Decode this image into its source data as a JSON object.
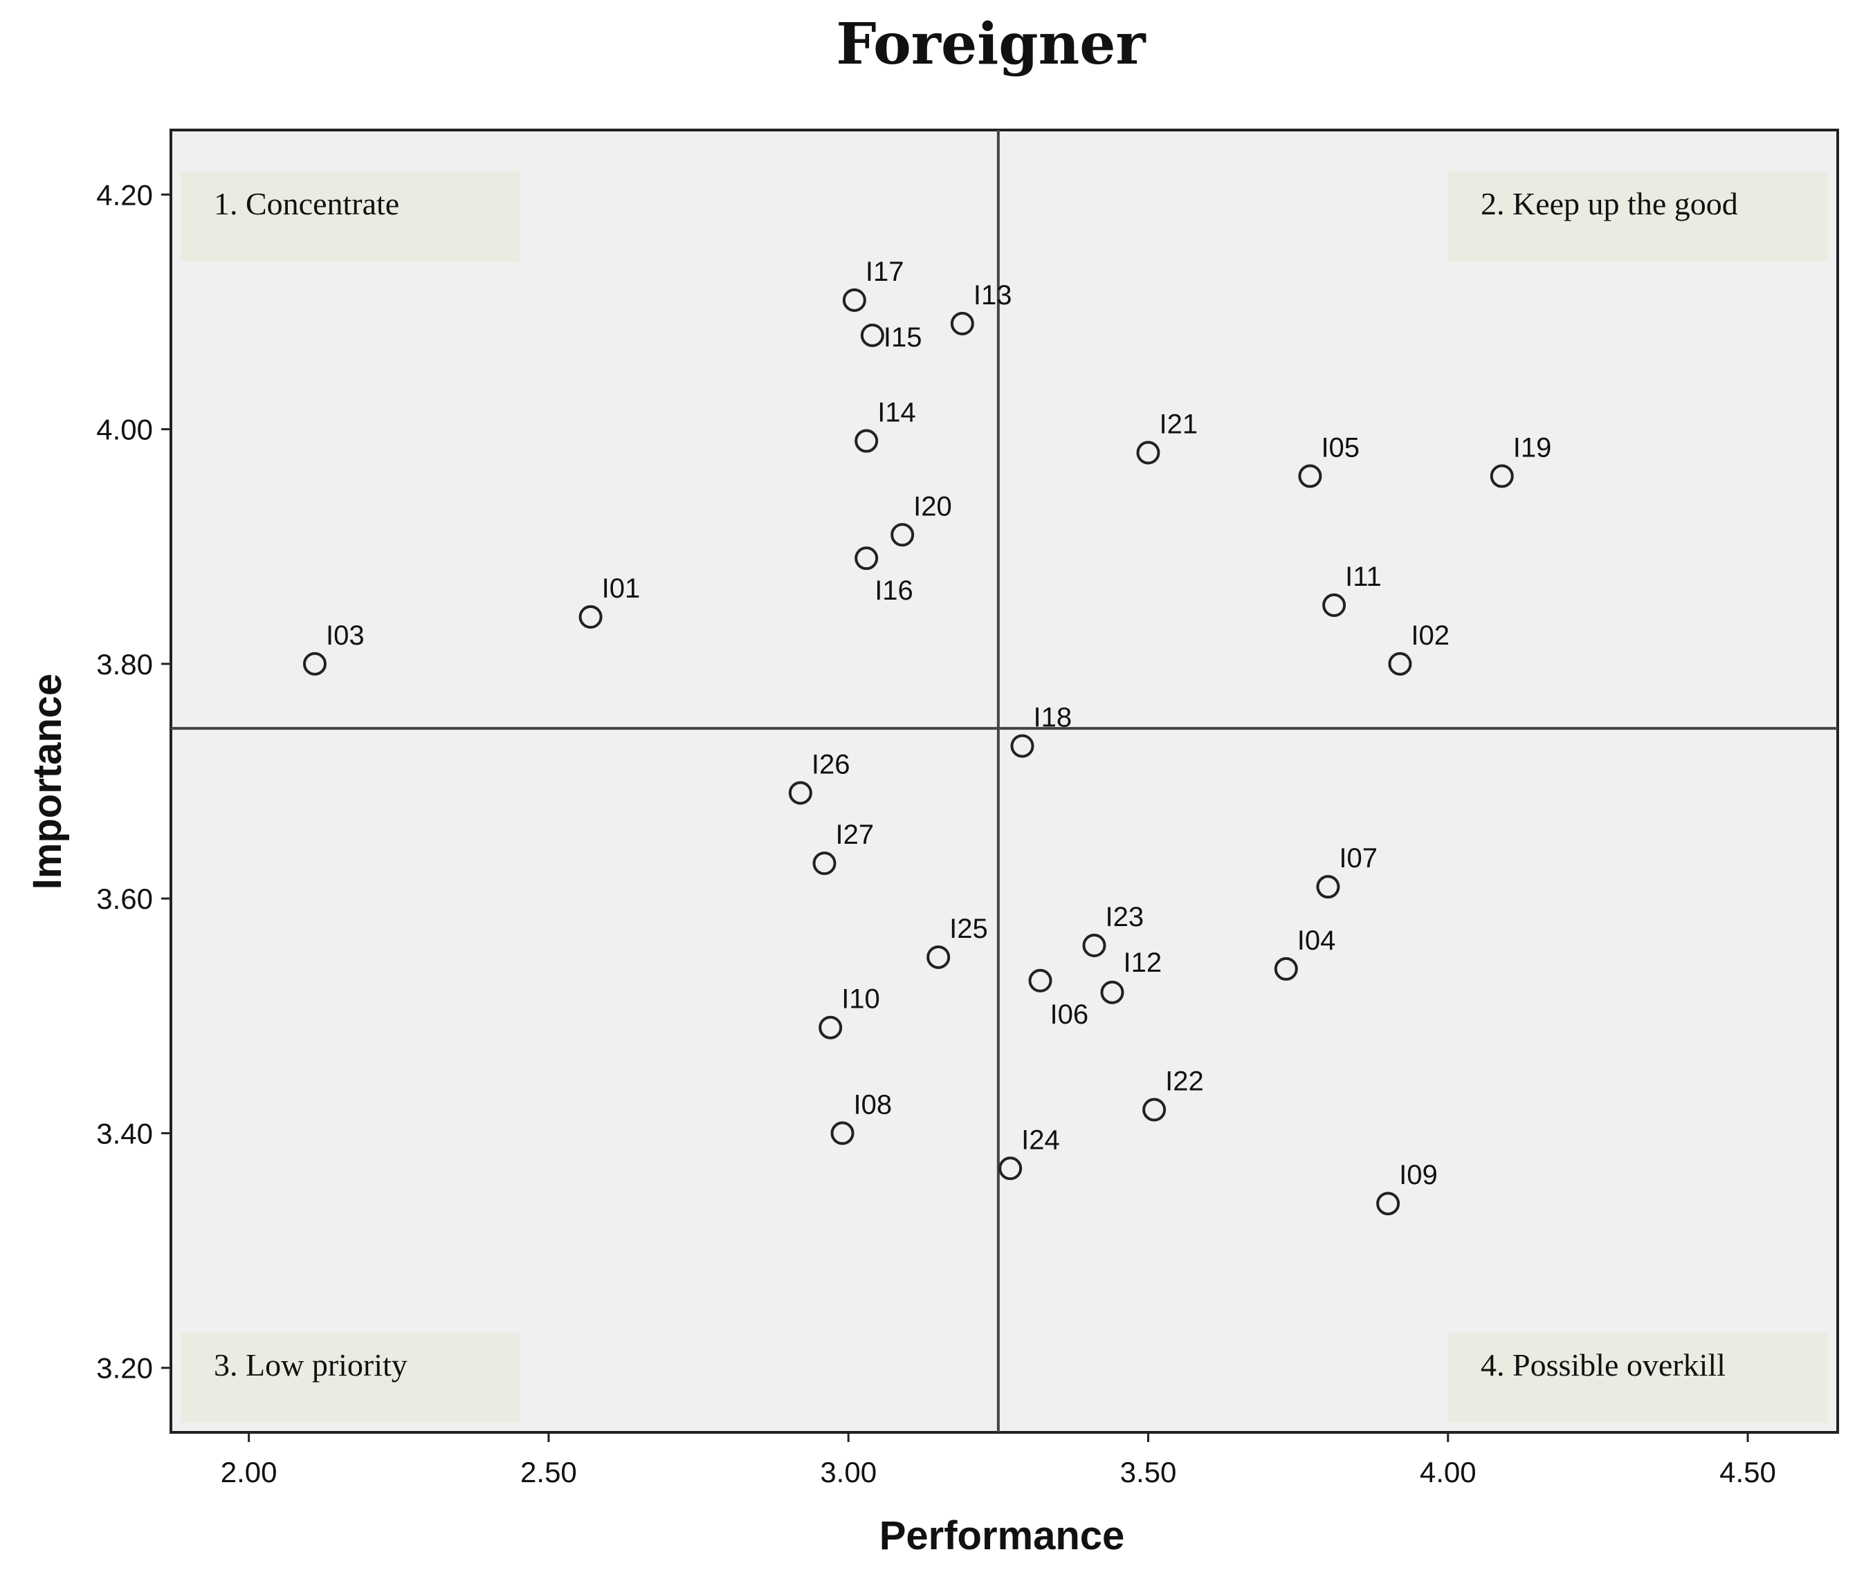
{
  "chart_data": {
    "type": "scatter",
    "title": "Foreigner",
    "xlabel": "Performance",
    "ylabel": "Importance",
    "xlim": [
      1.87,
      4.65
    ],
    "ylim": [
      3.145,
      4.255
    ],
    "xticks": [
      2.0,
      2.5,
      3.0,
      3.5,
      4.0,
      4.5
    ],
    "xtick_labels": [
      "2.00",
      "2.50",
      "3.00",
      "3.50",
      "4.00",
      "4.50"
    ],
    "yticks": [
      3.2,
      3.4,
      3.6,
      3.8,
      4.0,
      4.2
    ],
    "ytick_labels": [
      "3.20",
      "3.40",
      "3.60",
      "3.80",
      "4.00",
      "4.20"
    ],
    "grid": false,
    "reference_lines": {
      "x": 3.25,
      "y": 3.745
    },
    "quadrants": [
      {
        "label": "1. Concentrate",
        "position": "top-left"
      },
      {
        "label": "2. Keep up the good",
        "position": "top-right"
      },
      {
        "label": "3. Low priority",
        "position": "bottom-left"
      },
      {
        "label": "4. Possible overkill",
        "position": "bottom-right"
      }
    ],
    "points": [
      {
        "label": "I01",
        "x": 2.57,
        "y": 3.84
      },
      {
        "label": "I02",
        "x": 3.92,
        "y": 3.8
      },
      {
        "label": "I03",
        "x": 2.11,
        "y": 3.8
      },
      {
        "label": "I04",
        "x": 3.73,
        "y": 3.54
      },
      {
        "label": "I05",
        "x": 3.77,
        "y": 3.96
      },
      {
        "label": "I06",
        "x": 3.32,
        "y": 3.53
      },
      {
        "label": "I07",
        "x": 3.8,
        "y": 3.61
      },
      {
        "label": "I08",
        "x": 2.99,
        "y": 3.4
      },
      {
        "label": "I09",
        "x": 3.9,
        "y": 3.34
      },
      {
        "label": "I10",
        "x": 2.97,
        "y": 3.49
      },
      {
        "label": "I11",
        "x": 3.81,
        "y": 3.85
      },
      {
        "label": "I12",
        "x": 3.44,
        "y": 3.52
      },
      {
        "label": "I13",
        "x": 3.19,
        "y": 4.09
      },
      {
        "label": "I14",
        "x": 3.03,
        "y": 3.99
      },
      {
        "label": "I15",
        "x": 3.04,
        "y": 4.08
      },
      {
        "label": "I16",
        "x": 3.03,
        "y": 3.89
      },
      {
        "label": "I17",
        "x": 3.01,
        "y": 4.11
      },
      {
        "label": "I18",
        "x": 3.29,
        "y": 3.73
      },
      {
        "label": "I19",
        "x": 4.09,
        "y": 3.96
      },
      {
        "label": "I20",
        "x": 3.09,
        "y": 3.91
      },
      {
        "label": "I21",
        "x": 3.5,
        "y": 3.98
      },
      {
        "label": "I22",
        "x": 3.51,
        "y": 3.42
      },
      {
        "label": "I23",
        "x": 3.41,
        "y": 3.56
      },
      {
        "label": "I24",
        "x": 3.27,
        "y": 3.37
      },
      {
        "label": "I25",
        "x": 3.15,
        "y": 3.55
      },
      {
        "label": "I26",
        "x": 2.92,
        "y": 3.69
      },
      {
        "label": "I27",
        "x": 2.96,
        "y": 3.63
      }
    ]
  }
}
